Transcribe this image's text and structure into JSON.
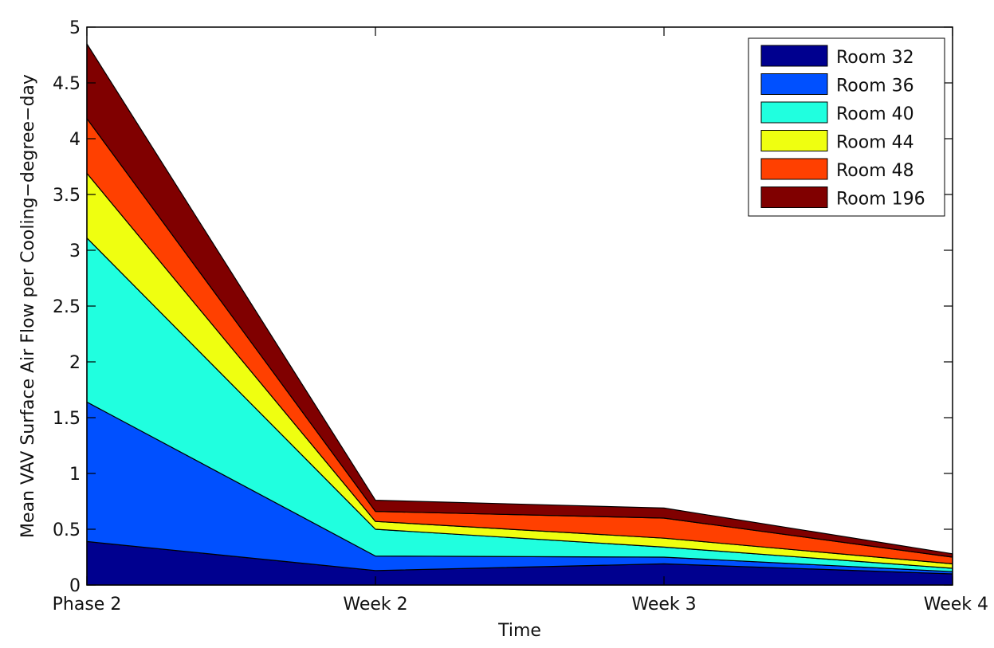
{
  "chart_data": {
    "type": "area",
    "stacked": true,
    "title": "",
    "xlabel": "Time",
    "ylabel": "Mean VAV Surface Air Flow per Cooling−degree−day",
    "categories": [
      "Phase 2",
      "Week 2",
      "Week 3",
      "Week 4"
    ],
    "ylim": [
      0,
      5
    ],
    "yticks": [
      "0",
      "0.5",
      "1",
      "1.5",
      "2",
      "2.5",
      "3",
      "3.5",
      "4",
      "4.5",
      "5"
    ],
    "ytick_values": [
      0,
      0.5,
      1,
      1.5,
      2,
      2.5,
      3,
      3.5,
      4,
      4.5,
      5
    ],
    "grid": false,
    "legend_position": "top-right",
    "series": [
      {
        "name": "Room 32",
        "color": "#00008f",
        "values": [
          0.39,
          0.13,
          0.19,
          0.1
        ]
      },
      {
        "name": "Room 36",
        "color": "#0050ff",
        "values": [
          1.25,
          0.13,
          0.06,
          0.02
        ]
      },
      {
        "name": "Room 40",
        "color": "#20ffdf",
        "values": [
          1.47,
          0.24,
          0.09,
          0.03
        ]
      },
      {
        "name": "Room 44",
        "color": "#efff10",
        "values": [
          0.58,
          0.07,
          0.08,
          0.04
        ]
      },
      {
        "name": "Room 48",
        "color": "#ff4000",
        "values": [
          0.49,
          0.09,
          0.18,
          0.06
        ]
      },
      {
        "name": "Room 196",
        "color": "#800000",
        "values": [
          0.67,
          0.1,
          0.09,
          0.03
        ]
      }
    ]
  }
}
